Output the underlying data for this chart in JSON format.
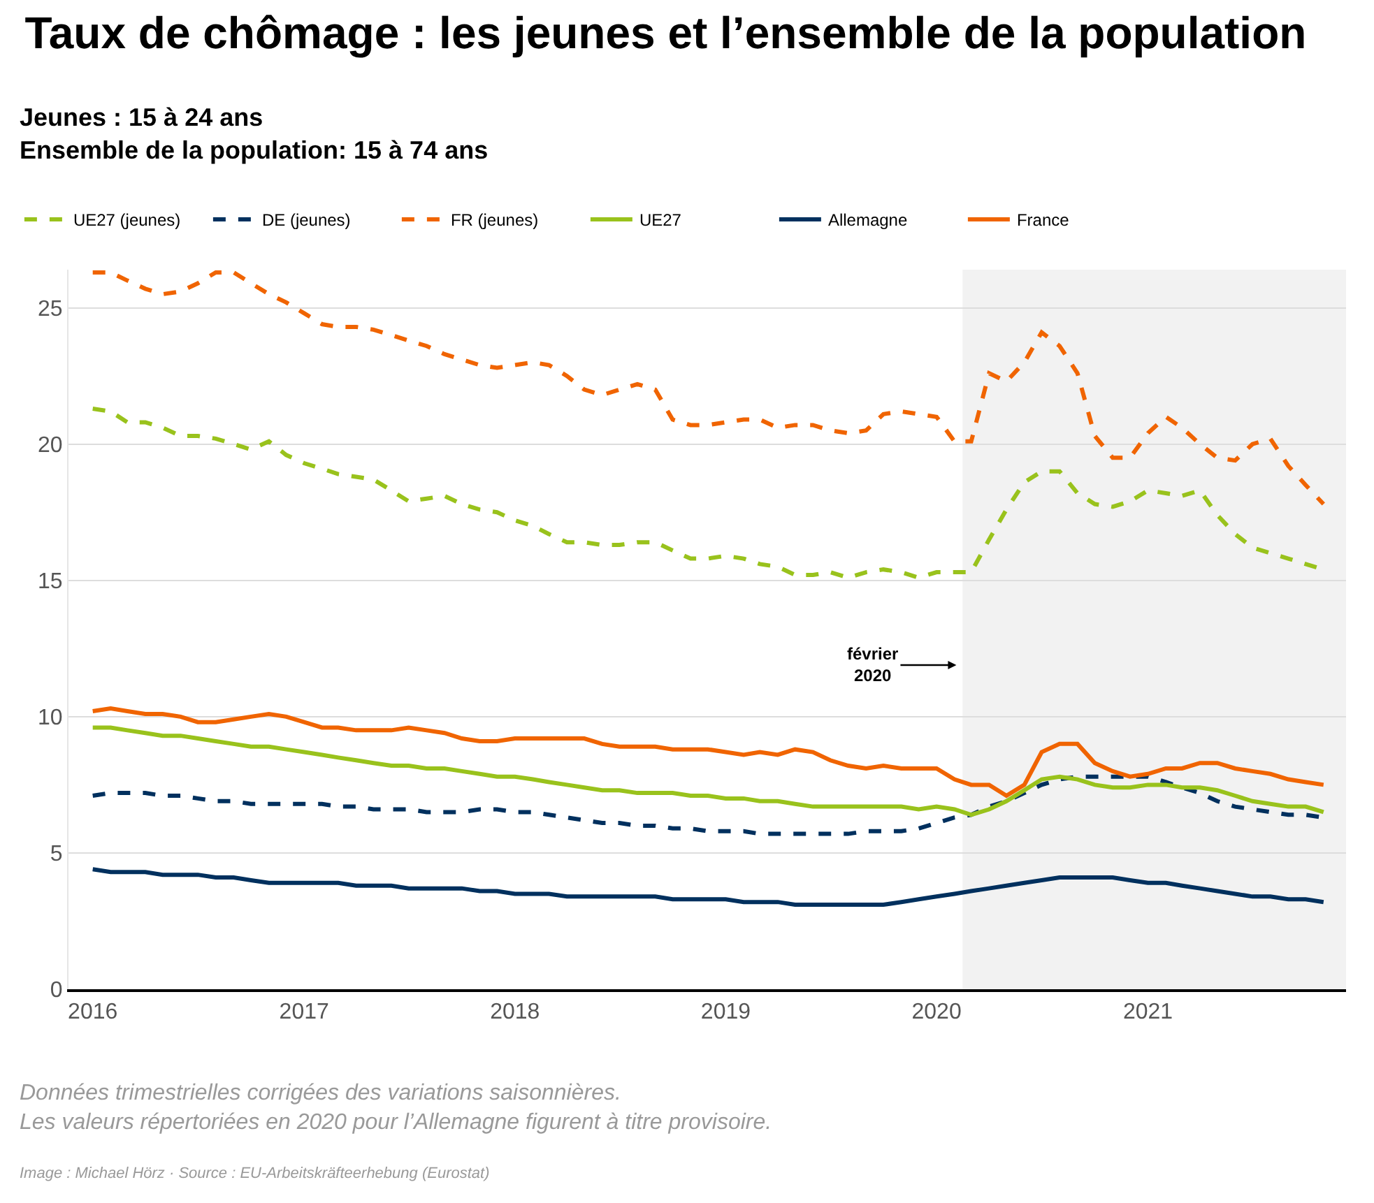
{
  "chart_data": {
    "type": "line",
    "title": "Taux de chômage : les jeunes et l’ensemble de la population",
    "subtitle": "Jeunes : 15 à 24 ans\nEnsemble de la population: 15 à 74 ans",
    "x": [
      "2016-01",
      "2016-02",
      "2016-03",
      "2016-04",
      "2016-05",
      "2016-06",
      "2016-07",
      "2016-08",
      "2016-09",
      "2016-10",
      "2016-11",
      "2016-12",
      "2017-01",
      "2017-02",
      "2017-03",
      "2017-04",
      "2017-05",
      "2017-06",
      "2017-07",
      "2017-08",
      "2017-09",
      "2017-10",
      "2017-11",
      "2017-12",
      "2018-01",
      "2018-02",
      "2018-03",
      "2018-04",
      "2018-05",
      "2018-06",
      "2018-07",
      "2018-08",
      "2018-09",
      "2018-10",
      "2018-11",
      "2018-12",
      "2019-01",
      "2019-02",
      "2019-03",
      "2019-04",
      "2019-05",
      "2019-06",
      "2019-07",
      "2019-08",
      "2019-09",
      "2019-10",
      "2019-11",
      "2019-12",
      "2020-01",
      "2020-02",
      "2020-03",
      "2020-04",
      "2020-05",
      "2020-06",
      "2020-07",
      "2020-08",
      "2020-09",
      "2020-10",
      "2020-11",
      "2020-12",
      "2021-01",
      "2021-02",
      "2021-03",
      "2021-04",
      "2021-05",
      "2021-06",
      "2021-07",
      "2021-08",
      "2021-09",
      "2021-10",
      "2021-11"
    ],
    "series": [
      {
        "name": "UE27 (jeunes)",
        "color": "#99c21c",
        "line_style": "dashed",
        "values": [
          21.3,
          21.2,
          20.8,
          20.8,
          20.6,
          20.3,
          20.3,
          20.2,
          20.0,
          19.8,
          20.1,
          19.6,
          19.3,
          19.1,
          18.9,
          18.8,
          18.7,
          18.3,
          17.9,
          18.0,
          18.1,
          17.8,
          17.6,
          17.5,
          17.2,
          17.0,
          16.7,
          16.4,
          16.4,
          16.3,
          16.3,
          16.4,
          16.4,
          16.1,
          15.8,
          15.8,
          15.9,
          15.8,
          15.6,
          15.5,
          15.2,
          15.2,
          15.3,
          15.1,
          15.3,
          15.4,
          15.3,
          15.1,
          15.3,
          15.3,
          15.3,
          16.5,
          17.6,
          18.6,
          19.0,
          19.0,
          18.2,
          17.8,
          17.7,
          17.9,
          18.3,
          18.2,
          18.1,
          18.3,
          17.4,
          16.7,
          16.2,
          16.0,
          15.8,
          15.6,
          15.4
        ]
      },
      {
        "name": "DE (jeunes)",
        "color": "#00305e",
        "line_style": "dashed",
        "values": [
          7.1,
          7.2,
          7.2,
          7.2,
          7.1,
          7.1,
          7.0,
          6.9,
          6.9,
          6.8,
          6.8,
          6.8,
          6.8,
          6.8,
          6.7,
          6.7,
          6.6,
          6.6,
          6.6,
          6.5,
          6.5,
          6.5,
          6.6,
          6.6,
          6.5,
          6.5,
          6.4,
          6.3,
          6.2,
          6.1,
          6.1,
          6.0,
          6.0,
          5.9,
          5.9,
          5.8,
          5.8,
          5.8,
          5.7,
          5.7,
          5.7,
          5.7,
          5.7,
          5.7,
          5.8,
          5.8,
          5.8,
          5.9,
          6.1,
          6.3,
          6.4,
          6.7,
          6.9,
          7.2,
          7.5,
          7.7,
          7.8,
          7.8,
          7.8,
          7.8,
          7.8,
          7.6,
          7.4,
          7.2,
          6.9,
          6.7,
          6.6,
          6.5,
          6.4,
          6.4,
          6.3
        ]
      },
      {
        "name": "FR (jeunes)",
        "color": "#f06400",
        "line_style": "dashed",
        "values": [
          26.3,
          26.3,
          26.0,
          25.7,
          25.5,
          25.6,
          25.9,
          26.3,
          26.3,
          25.9,
          25.5,
          25.2,
          24.8,
          24.4,
          24.3,
          24.3,
          24.2,
          24.0,
          23.8,
          23.6,
          23.3,
          23.1,
          22.9,
          22.8,
          22.9,
          23.0,
          22.9,
          22.5,
          22.0,
          21.8,
          22.0,
          22.2,
          22.0,
          20.9,
          20.7,
          20.7,
          20.8,
          20.9,
          20.9,
          20.6,
          20.7,
          20.7,
          20.5,
          20.4,
          20.5,
          21.1,
          21.2,
          21.1,
          21.0,
          20.1,
          20.1,
          22.6,
          22.3,
          23.0,
          24.1,
          23.6,
          22.6,
          20.3,
          19.5,
          19.5,
          20.4,
          21.0,
          20.6,
          20.0,
          19.5,
          19.4,
          20.0,
          20.2,
          19.2,
          18.5,
          17.8
        ]
      },
      {
        "name": "UE27",
        "color": "#99c21c",
        "line_style": "solid",
        "values": [
          9.6,
          9.6,
          9.5,
          9.4,
          9.3,
          9.3,
          9.2,
          9.1,
          9.0,
          8.9,
          8.9,
          8.8,
          8.7,
          8.6,
          8.5,
          8.4,
          8.3,
          8.2,
          8.2,
          8.1,
          8.1,
          8.0,
          7.9,
          7.8,
          7.8,
          7.7,
          7.6,
          7.5,
          7.4,
          7.3,
          7.3,
          7.2,
          7.2,
          7.2,
          7.1,
          7.1,
          7.0,
          7.0,
          6.9,
          6.9,
          6.8,
          6.7,
          6.7,
          6.7,
          6.7,
          6.7,
          6.7,
          6.6,
          6.7,
          6.6,
          6.4,
          6.6,
          6.9,
          7.3,
          7.7,
          7.8,
          7.7,
          7.5,
          7.4,
          7.4,
          7.5,
          7.5,
          7.4,
          7.4,
          7.3,
          7.1,
          6.9,
          6.8,
          6.7,
          6.7,
          6.5
        ]
      },
      {
        "name": "Allemagne",
        "color": "#00305e",
        "line_style": "solid",
        "values": [
          4.4,
          4.3,
          4.3,
          4.3,
          4.2,
          4.2,
          4.2,
          4.1,
          4.1,
          4.0,
          3.9,
          3.9,
          3.9,
          3.9,
          3.9,
          3.8,
          3.8,
          3.8,
          3.7,
          3.7,
          3.7,
          3.7,
          3.6,
          3.6,
          3.5,
          3.5,
          3.5,
          3.4,
          3.4,
          3.4,
          3.4,
          3.4,
          3.4,
          3.3,
          3.3,
          3.3,
          3.3,
          3.2,
          3.2,
          3.2,
          3.1,
          3.1,
          3.1,
          3.1,
          3.1,
          3.1,
          3.2,
          3.3,
          3.4,
          3.5,
          3.6,
          3.7,
          3.8,
          3.9,
          4.0,
          4.1,
          4.1,
          4.1,
          4.1,
          4.0,
          3.9,
          3.9,
          3.8,
          3.7,
          3.6,
          3.5,
          3.4,
          3.4,
          3.3,
          3.3,
          3.2
        ]
      },
      {
        "name": "France",
        "color": "#f06400",
        "line_style": "solid",
        "values": [
          10.2,
          10.3,
          10.2,
          10.1,
          10.1,
          10.0,
          9.8,
          9.8,
          9.9,
          10.0,
          10.1,
          10.0,
          9.8,
          9.6,
          9.6,
          9.5,
          9.5,
          9.5,
          9.6,
          9.5,
          9.4,
          9.2,
          9.1,
          9.1,
          9.2,
          9.2,
          9.2,
          9.2,
          9.2,
          9.0,
          8.9,
          8.9,
          8.9,
          8.8,
          8.8,
          8.8,
          8.7,
          8.6,
          8.7,
          8.6,
          8.8,
          8.7,
          8.4,
          8.2,
          8.1,
          8.2,
          8.1,
          8.1,
          8.1,
          7.7,
          7.5,
          7.5,
          7.1,
          7.5,
          8.7,
          9.0,
          9.0,
          8.3,
          8.0,
          7.8,
          7.9,
          8.1,
          8.1,
          8.3,
          8.3,
          8.1,
          8.0,
          7.9,
          7.7,
          7.6,
          7.5
        ]
      }
    ],
    "xlim": [
      "2015-11-20",
      "2021-12-10"
    ],
    "xticks": [
      "2016",
      "2017",
      "2018",
      "2019",
      "2020",
      "2021"
    ],
    "ylim": [
      0,
      26.4
    ],
    "yticks": [
      0,
      5,
      10,
      15,
      20,
      25
    ],
    "grid": "y",
    "legend": "top",
    "marker": "none",
    "bands": [
      {
        "axis": "x",
        "from": "2020-02-15",
        "to": "2021-12-10",
        "color": "#f2f2f2"
      }
    ],
    "annotations": [
      "février\n2020",
      "Données trimestrielles corrigées des variations saisonnières.\nLes valeurs répertoriées en 2020 pour l’Allemagne figurent à titre provisoire.",
      "Image : Michael Hörz · Source : EU-Arbeitskräfteerhebung (Eurostat)"
    ]
  }
}
